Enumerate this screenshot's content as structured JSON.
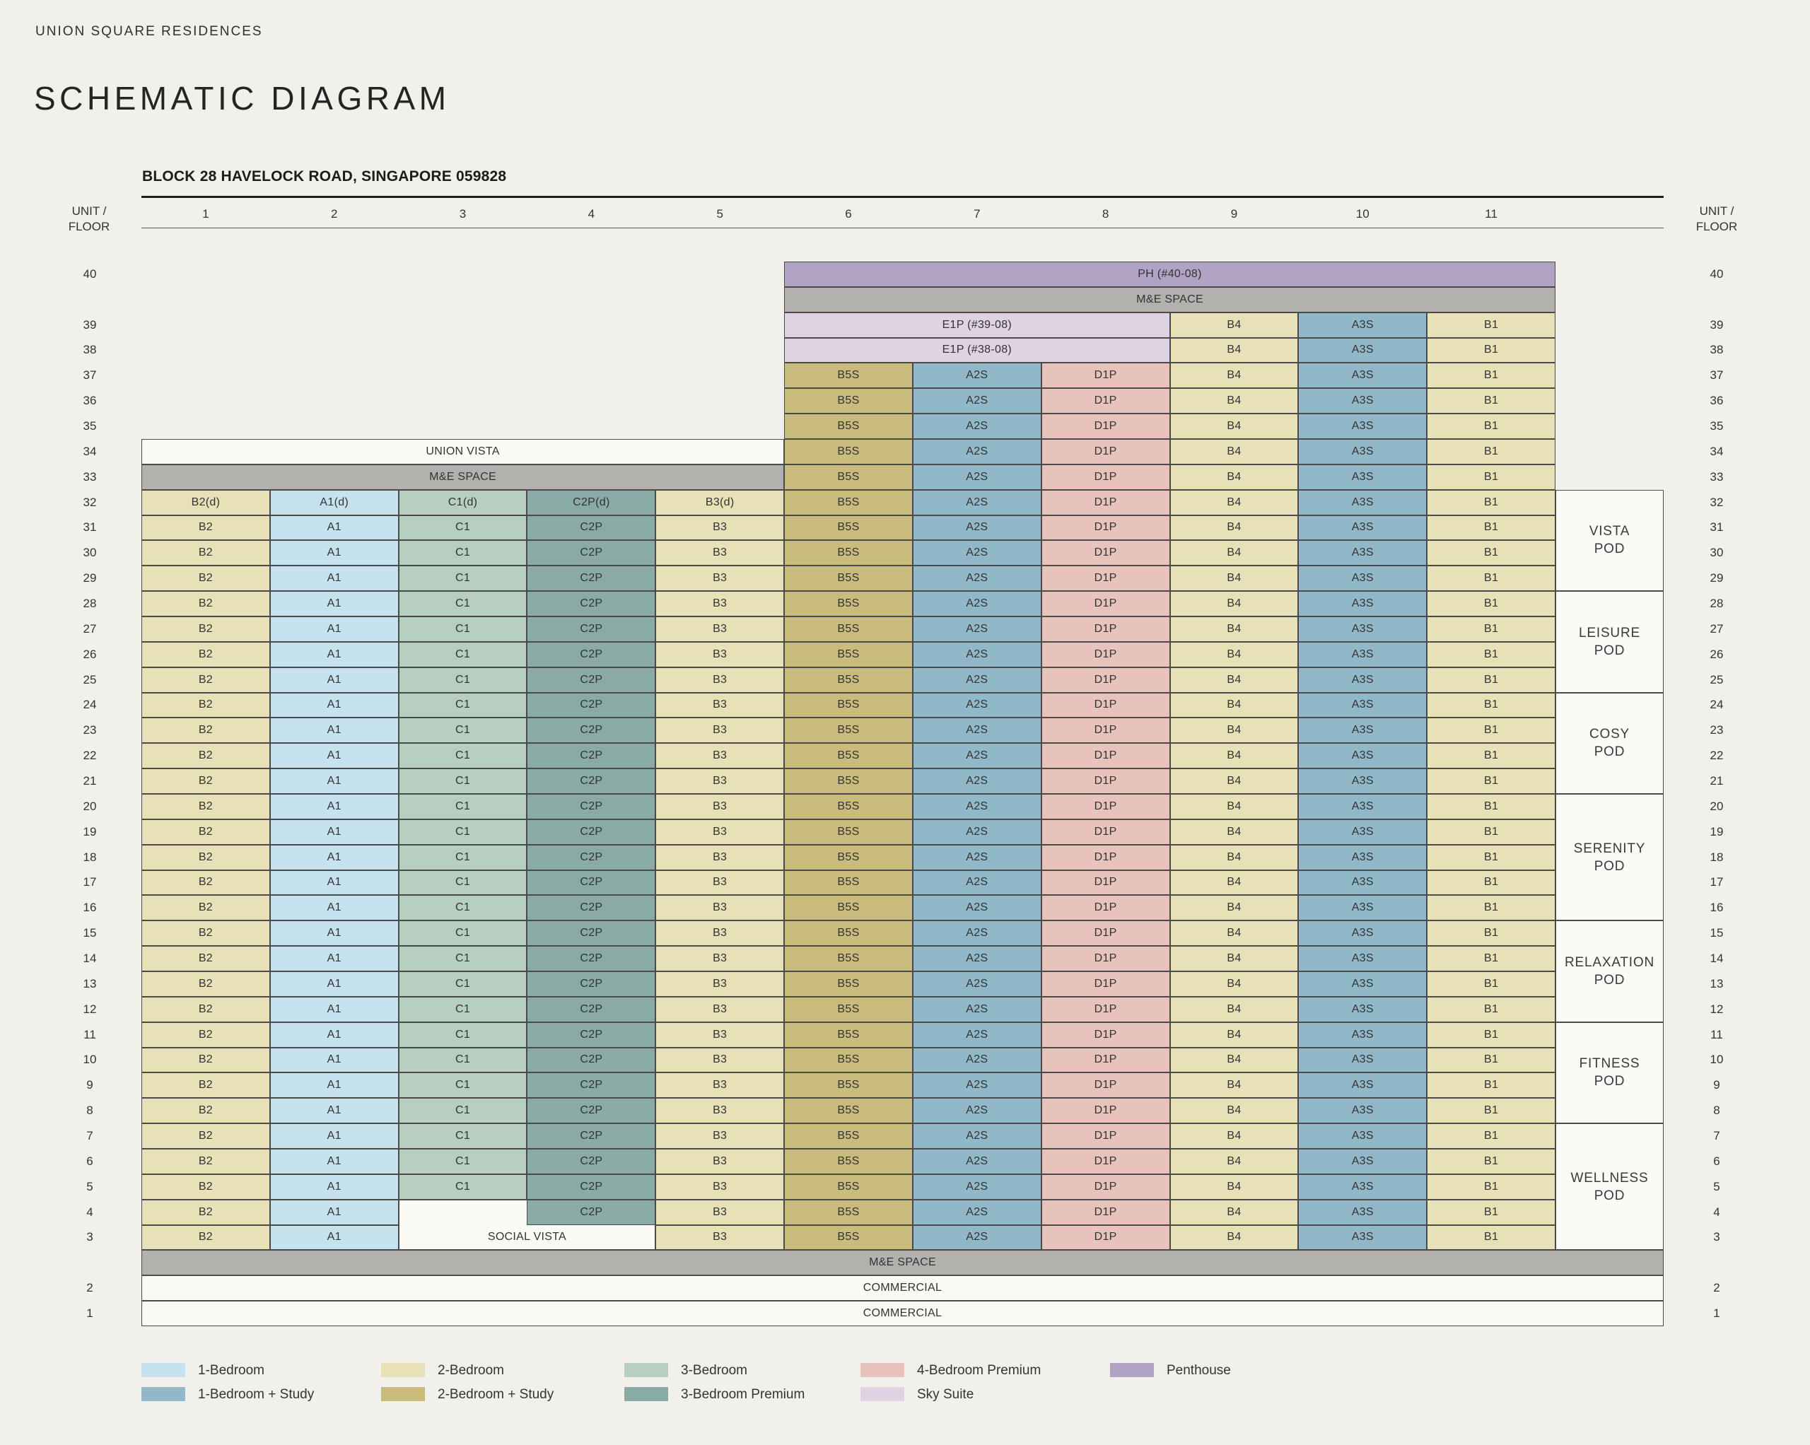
{
  "page": {
    "brand": "UNION SQUARE RESIDENCES",
    "title": "SCHEMATIC DIAGRAM",
    "address": "BLOCK 28 HAVELOCK ROAD, SINGAPORE 059828",
    "axis_label_lines": [
      "UNIT /",
      "FLOOR"
    ]
  },
  "columns": [
    "1",
    "2",
    "3",
    "4",
    "5",
    "6",
    "7",
    "8",
    "9",
    "10",
    "11"
  ],
  "colors": {
    "1br": "#c5e2ee",
    "1brs": "#90b8c8",
    "2br": "#e8e0b7",
    "2brs": "#c9bb7c",
    "3br": "#b7cfc0",
    "3brp": "#8aaba5",
    "4brp": "#e7c3bb",
    "sky": "#ded2e3",
    "ph": "#b0a3c4",
    "me": "#b2b1ae",
    "open": "#fafaf7"
  },
  "cell_templates": {
    "left_standard": [
      {
        "c": [
          1,
          1
        ],
        "t": "2br",
        "x": "B2"
      },
      {
        "c": [
          2,
          2
        ],
        "t": "1br",
        "x": "A1"
      },
      {
        "c": [
          3,
          3
        ],
        "t": "3br",
        "x": "C1"
      },
      {
        "c": [
          4,
          4
        ],
        "t": "3brp",
        "x": "C2P"
      },
      {
        "c": [
          5,
          5
        ],
        "t": "2br",
        "x": "B3"
      }
    ],
    "right_standard": [
      {
        "c": [
          6,
          6
        ],
        "t": "2brs",
        "x": "B5S"
      },
      {
        "c": [
          7,
          7
        ],
        "t": "1brs",
        "x": "A2S"
      },
      {
        "c": [
          8,
          8
        ],
        "t": "4brp",
        "x": "D1P"
      },
      {
        "c": [
          9,
          9
        ],
        "t": "2br",
        "x": "B4"
      },
      {
        "c": [
          10,
          10
        ],
        "t": "1brs",
        "x": "A3S"
      },
      {
        "c": [
          11,
          11
        ],
        "t": "2br",
        "x": "B1"
      }
    ]
  },
  "floors": [
    {
      "floor": "40",
      "cells": [
        {
          "c": [
            6,
            11
          ],
          "t": "ph",
          "x": "PH (#40-08)"
        }
      ]
    },
    {
      "floor": "",
      "cells": [
        {
          "c": [
            6,
            11
          ],
          "t": "me",
          "x": "M&E SPACE"
        }
      ]
    },
    {
      "floor": "39",
      "cells": [
        {
          "c": [
            6,
            8
          ],
          "t": "sky",
          "x": "E1P (#39-08)"
        },
        {
          "c": [
            9,
            9
          ],
          "t": "2br",
          "x": "B4"
        },
        {
          "c": [
            10,
            10
          ],
          "t": "1brs",
          "x": "A3S"
        },
        {
          "c": [
            11,
            11
          ],
          "t": "2br",
          "x": "B1"
        }
      ]
    },
    {
      "floor": "38",
      "cells": [
        {
          "c": [
            6,
            8
          ],
          "t": "sky",
          "x": "E1P (#38-08)"
        },
        {
          "c": [
            9,
            9
          ],
          "t": "2br",
          "x": "B4"
        },
        {
          "c": [
            10,
            10
          ],
          "t": "1brs",
          "x": "A3S"
        },
        {
          "c": [
            11,
            11
          ],
          "t": "2br",
          "x": "B1"
        }
      ]
    },
    {
      "floor": "37",
      "use": [
        "right_standard"
      ]
    },
    {
      "floor": "36",
      "use": [
        "right_standard"
      ]
    },
    {
      "floor": "35",
      "use": [
        "right_standard"
      ]
    },
    {
      "floor": "34",
      "cells": [
        {
          "c": [
            1,
            5
          ],
          "t": "open",
          "x": "UNION VISTA"
        }
      ],
      "use": [
        "right_standard"
      ]
    },
    {
      "floor": "33",
      "cells": [
        {
          "c": [
            1,
            5
          ],
          "t": "me",
          "x": "M&E SPACE"
        }
      ],
      "use": [
        "right_standard"
      ]
    },
    {
      "floor": "32",
      "cells": [
        {
          "c": [
            1,
            1
          ],
          "t": "2br",
          "x": "B2(d)"
        },
        {
          "c": [
            2,
            2
          ],
          "t": "1br",
          "x": "A1(d)"
        },
        {
          "c": [
            3,
            3
          ],
          "t": "3br",
          "x": "C1(d)"
        },
        {
          "c": [
            4,
            4
          ],
          "t": "3brp",
          "x": "C2P(d)"
        },
        {
          "c": [
            5,
            5
          ],
          "t": "2br",
          "x": "B3(d)"
        }
      ],
      "use": [
        "right_standard"
      ]
    },
    {
      "floor": "31",
      "use": [
        "left_standard",
        "right_standard"
      ]
    },
    {
      "floor": "30",
      "use": [
        "left_standard",
        "right_standard"
      ]
    },
    {
      "floor": "29",
      "use": [
        "left_standard",
        "right_standard"
      ]
    },
    {
      "floor": "28",
      "use": [
        "left_standard",
        "right_standard"
      ]
    },
    {
      "floor": "27",
      "use": [
        "left_standard",
        "right_standard"
      ]
    },
    {
      "floor": "26",
      "use": [
        "left_standard",
        "right_standard"
      ]
    },
    {
      "floor": "25",
      "use": [
        "left_standard",
        "right_standard"
      ]
    },
    {
      "floor": "24",
      "use": [
        "left_standard",
        "right_standard"
      ]
    },
    {
      "floor": "23",
      "use": [
        "left_standard",
        "right_standard"
      ]
    },
    {
      "floor": "22",
      "use": [
        "left_standard",
        "right_standard"
      ]
    },
    {
      "floor": "21",
      "use": [
        "left_standard",
        "right_standard"
      ]
    },
    {
      "floor": "20",
      "use": [
        "left_standard",
        "right_standard"
      ]
    },
    {
      "floor": "19",
      "use": [
        "left_standard",
        "right_standard"
      ]
    },
    {
      "floor": "18",
      "use": [
        "left_standard",
        "right_standard"
      ]
    },
    {
      "floor": "17",
      "use": [
        "left_standard",
        "right_standard"
      ]
    },
    {
      "floor": "16",
      "use": [
        "left_standard",
        "right_standard"
      ]
    },
    {
      "floor": "15",
      "use": [
        "left_standard",
        "right_standard"
      ]
    },
    {
      "floor": "14",
      "use": [
        "left_standard",
        "right_standard"
      ]
    },
    {
      "floor": "13",
      "use": [
        "left_standard",
        "right_standard"
      ]
    },
    {
      "floor": "12",
      "use": [
        "left_standard",
        "right_standard"
      ]
    },
    {
      "floor": "11",
      "use": [
        "left_standard",
        "right_standard"
      ]
    },
    {
      "floor": "10",
      "use": [
        "left_standard",
        "right_standard"
      ]
    },
    {
      "floor": "9",
      "use": [
        "left_standard",
        "right_standard"
      ]
    },
    {
      "floor": "8",
      "use": [
        "left_standard",
        "right_standard"
      ]
    },
    {
      "floor": "7",
      "use": [
        "left_standard",
        "right_standard"
      ]
    },
    {
      "floor": "6",
      "use": [
        "left_standard",
        "right_standard"
      ]
    },
    {
      "floor": "5",
      "use": [
        "left_standard",
        "right_standard"
      ]
    },
    {
      "floor": "4",
      "cells": [
        {
          "c": [
            1,
            1
          ],
          "t": "2br",
          "x": "B2"
        },
        {
          "c": [
            2,
            2
          ],
          "t": "1br",
          "x": "A1"
        },
        {
          "c": [
            3,
            3
          ],
          "t": "open",
          "x": "",
          "b": "lt"
        },
        {
          "c": [
            4,
            4
          ],
          "t": "3brp",
          "x": "C2P"
        },
        {
          "c": [
            5,
            5
          ],
          "t": "2br",
          "x": "B3"
        }
      ],
      "use": [
        "right_standard"
      ]
    },
    {
      "floor": "3",
      "cells": [
        {
          "c": [
            1,
            1
          ],
          "t": "2br",
          "x": "B2"
        },
        {
          "c": [
            2,
            2
          ],
          "t": "1br",
          "x": "A1"
        },
        {
          "c": [
            3,
            4
          ],
          "t": "open",
          "x": "SOCIAL VISTA",
          "b": "lrb"
        },
        {
          "c": [
            5,
            5
          ],
          "t": "2br",
          "x": "B3"
        }
      ],
      "use": [
        "right_standard"
      ]
    },
    {
      "floor": "",
      "cells": [
        {
          "c": [
            1,
            11
          ],
          "t": "me",
          "x": "M&E SPACE",
          "w": "full"
        }
      ]
    },
    {
      "floor": "2",
      "cells": [
        {
          "c": [
            1,
            11
          ],
          "t": "open",
          "x": "COMMERCIAL",
          "w": "full"
        }
      ]
    },
    {
      "floor": "1",
      "cells": [
        {
          "c": [
            1,
            11
          ],
          "t": "open",
          "x": "COMMERCIAL",
          "w": "full"
        }
      ]
    }
  ],
  "pods": [
    {
      "lines": [
        "VISTA",
        "POD"
      ],
      "top_floor": "32",
      "bottom_floor": "29"
    },
    {
      "lines": [
        "LEISURE",
        "POD"
      ],
      "top_floor": "28",
      "bottom_floor": "25"
    },
    {
      "lines": [
        "COSY",
        "POD"
      ],
      "top_floor": "24",
      "bottom_floor": "21"
    },
    {
      "lines": [
        "SERENITY",
        "POD"
      ],
      "top_floor": "20",
      "bottom_floor": "16"
    },
    {
      "lines": [
        "RELAXATION",
        "POD"
      ],
      "top_floor": "15",
      "bottom_floor": "12"
    },
    {
      "lines": [
        "FITNESS",
        "POD"
      ],
      "top_floor": "11",
      "bottom_floor": "8"
    },
    {
      "lines": [
        "WELLNESS",
        "POD"
      ],
      "top_floor": "7",
      "bottom_floor": "3"
    }
  ],
  "legend": [
    {
      "label": "1-Bedroom",
      "type": "1br",
      "col": 0,
      "row": 0
    },
    {
      "label": "1-Bedroom + Study",
      "type": "1brs",
      "col": 0,
      "row": 1
    },
    {
      "label": "2-Bedroom",
      "type": "2br",
      "col": 1,
      "row": 0
    },
    {
      "label": "2-Bedroom + Study",
      "type": "2brs",
      "col": 1,
      "row": 1
    },
    {
      "label": "3-Bedroom",
      "type": "3br",
      "col": 2,
      "row": 0
    },
    {
      "label": "3-Bedroom Premium",
      "type": "3brp",
      "col": 2,
      "row": 1
    },
    {
      "label": "4-Bedroom Premium",
      "type": "4brp",
      "col": 3,
      "row": 0
    },
    {
      "label": "Sky Suite",
      "type": "sky",
      "col": 3,
      "row": 1
    },
    {
      "label": "Penthouse",
      "type": "ph",
      "col": 4,
      "row": 0
    }
  ]
}
